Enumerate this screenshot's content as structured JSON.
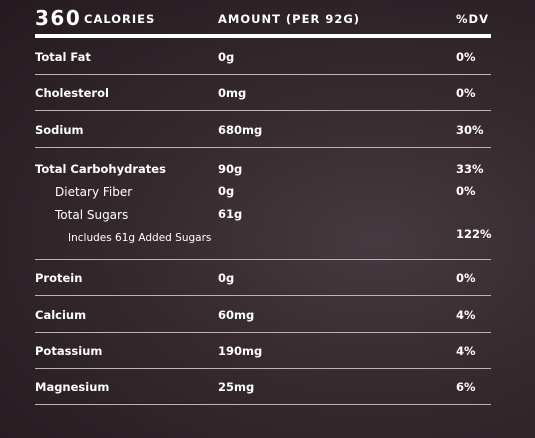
{
  "header": {
    "calories": "360",
    "calories_label": "CALORIES",
    "amount_heading": "AMOUNT (PER 92G)",
    "dv_heading": "%DV"
  },
  "nutrients": {
    "total_fat": {
      "name": "Total Fat",
      "amount": "0g",
      "dv": "0%"
    },
    "cholesterol": {
      "name": "Cholesterol",
      "amount": "0mg",
      "dv": "0%"
    },
    "sodium": {
      "name": "Sodium",
      "amount": "680mg",
      "dv": "30%"
    },
    "total_carbohydrates": {
      "name": "Total Carbohydrates",
      "amount": "90g",
      "dv": "33%"
    },
    "dietary_fiber": {
      "name": "Dietary Fiber",
      "amount": "0g",
      "dv": "0%"
    },
    "total_sugars": {
      "name": "Total Sugars",
      "amount": "61g"
    },
    "added_sugars": {
      "name": "Includes 61g Added Sugars",
      "dv": "122%"
    },
    "protein": {
      "name": "Protein",
      "amount": "0g",
      "dv": "0%"
    },
    "calcium": {
      "name": "Calcium",
      "amount": "60mg",
      "dv": "4%"
    },
    "potassium": {
      "name": "Potassium",
      "amount": "190mg",
      "dv": "4%"
    },
    "magnesium": {
      "name": "Magnesium",
      "amount": "25mg",
      "dv": "6%"
    }
  }
}
